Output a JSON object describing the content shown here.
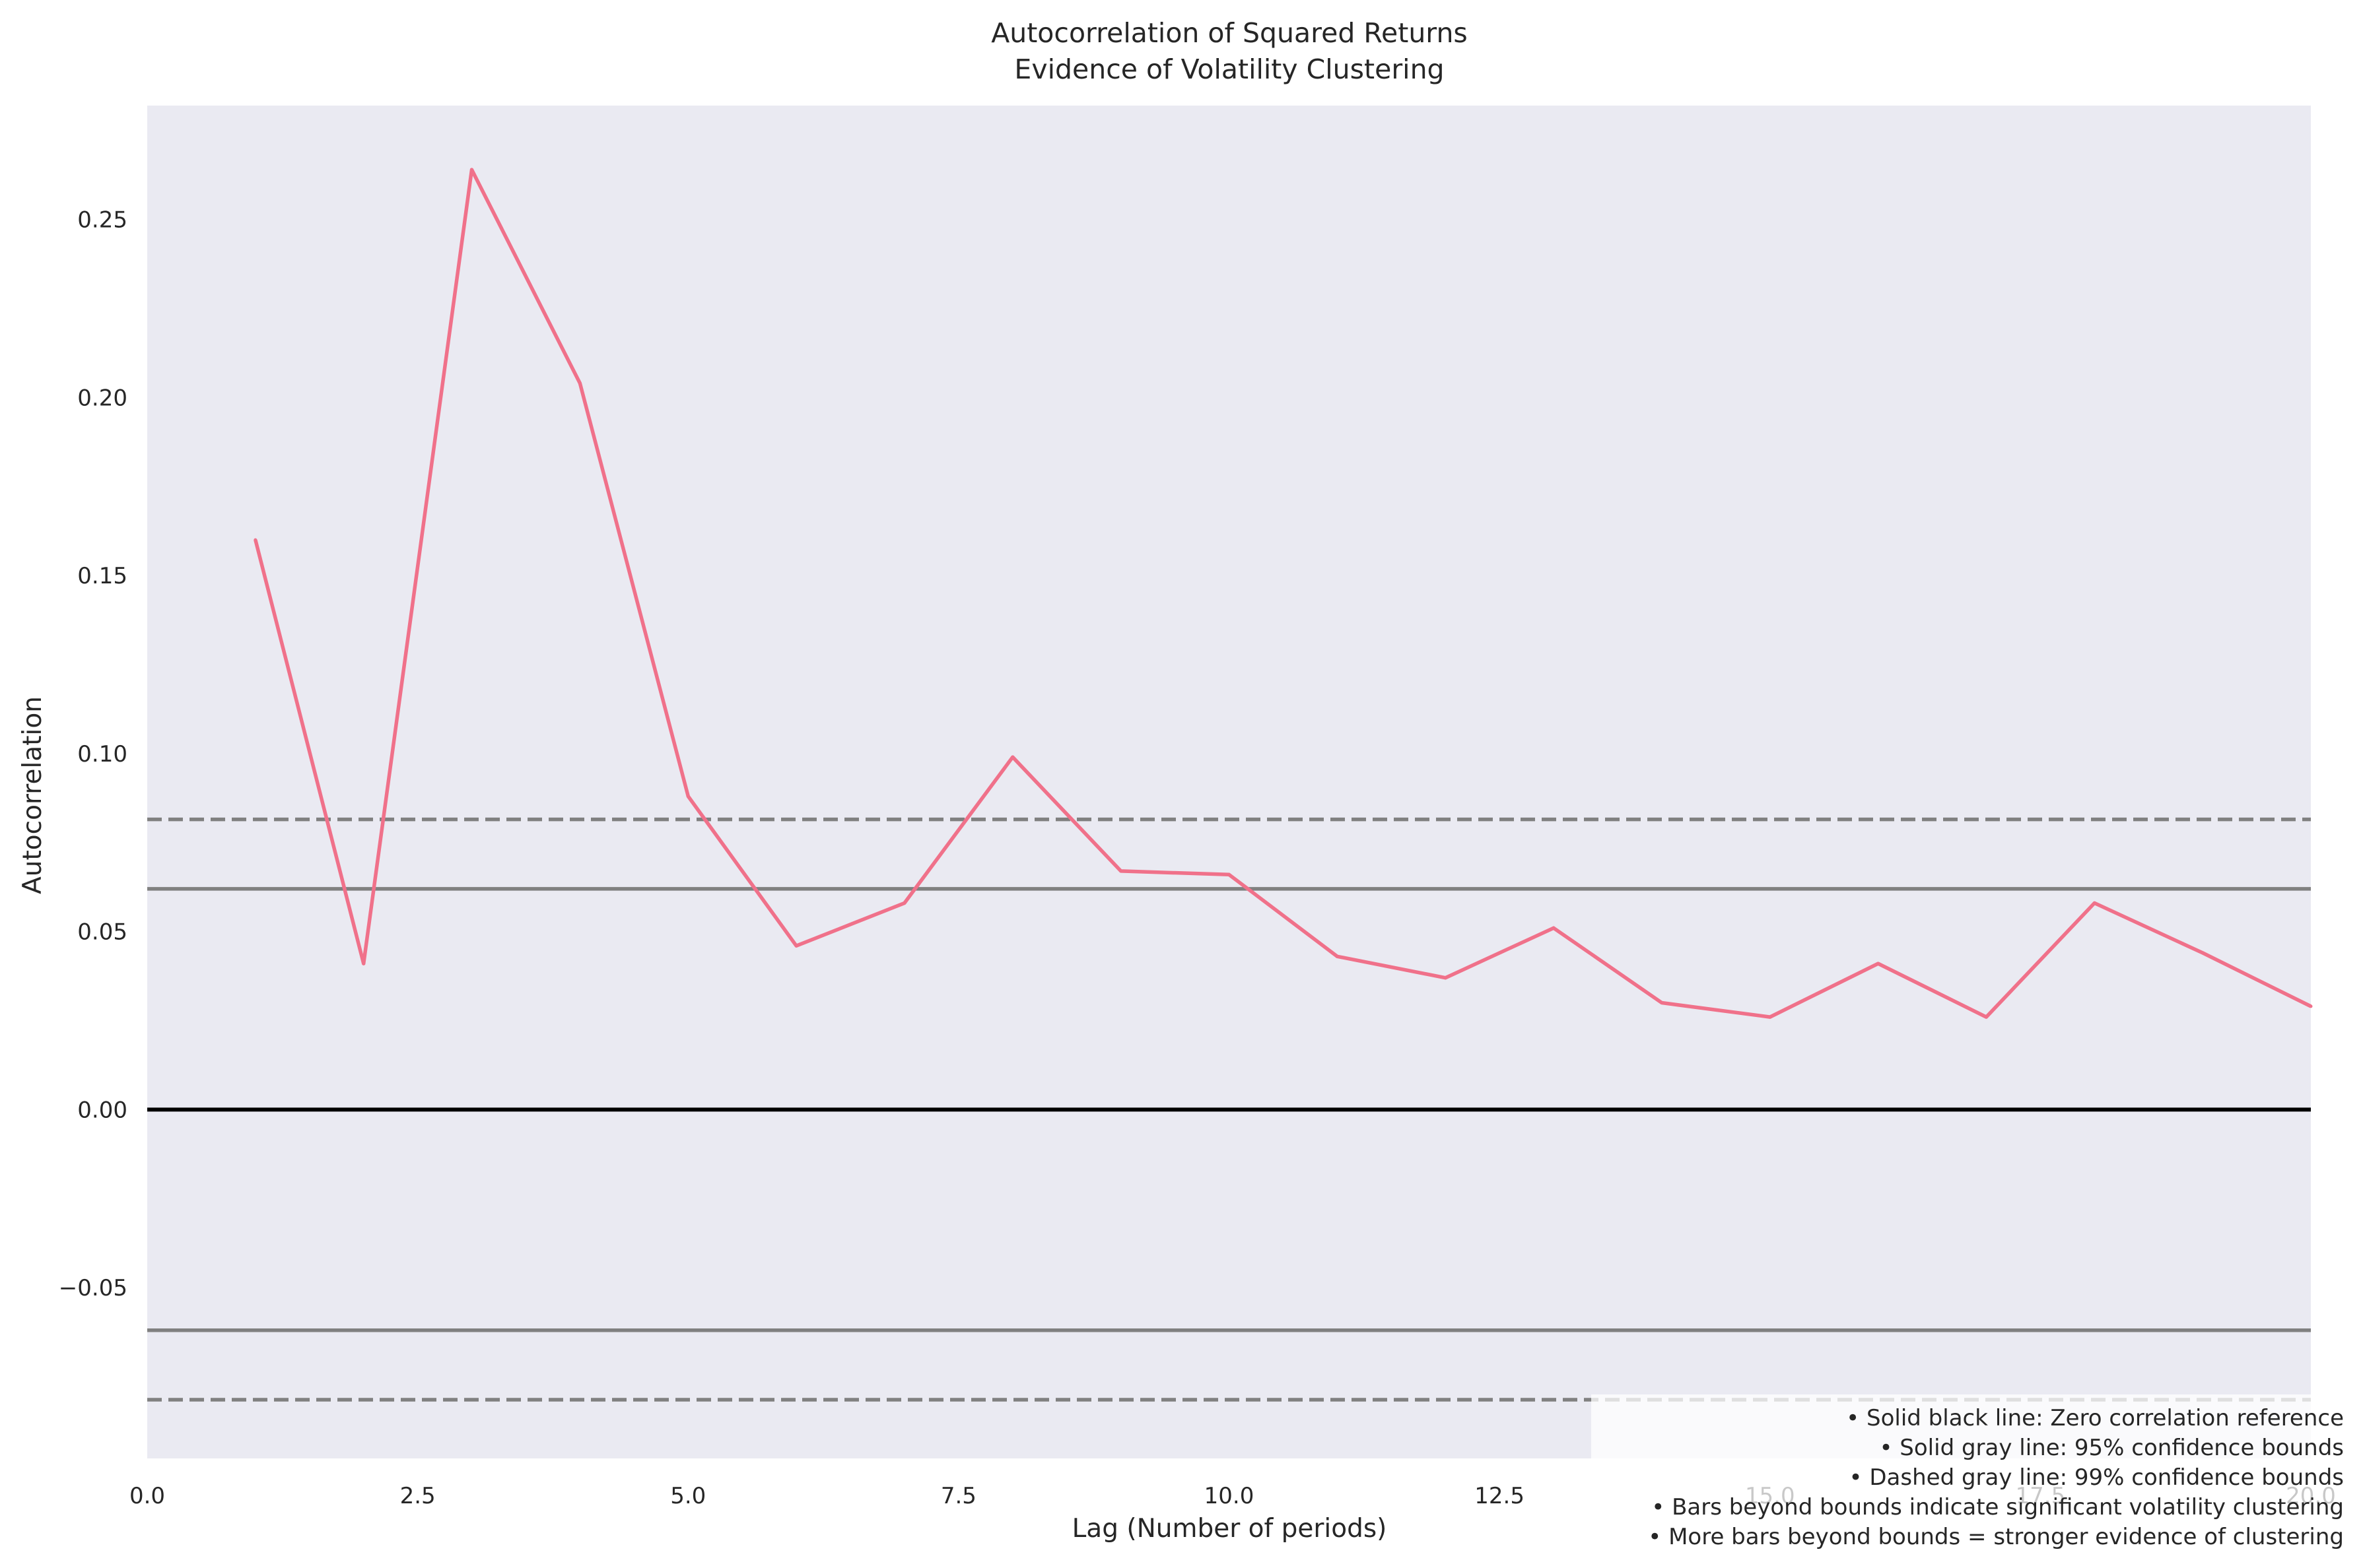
{
  "chart_data": {
    "type": "line",
    "title": "Autocorrelation of Squared Returns",
    "subtitle": "Evidence of Volatility Clustering",
    "xlabel": "Lag (Number of periods)",
    "ylabel": "Autocorrelation",
    "xlim": [
      0,
      20
    ],
    "ylim": [
      -0.098,
      0.282
    ],
    "x_ticks": [
      0.0,
      2.5,
      5.0,
      7.5,
      10.0,
      12.5,
      15.0,
      17.5,
      20.0
    ],
    "x_tick_labels": [
      "0.0",
      "2.5",
      "5.0",
      "7.5",
      "10.0",
      "12.5",
      "15.0",
      "17.5",
      "20.0"
    ],
    "y_ticks": [
      -0.05,
      0.0,
      0.05,
      0.1,
      0.15,
      0.2,
      0.25
    ],
    "y_tick_labels": [
      "−0.05",
      "0.00",
      "0.05",
      "0.10",
      "0.15",
      "0.20",
      "0.25"
    ],
    "grid": false,
    "background_color": "#eaeaf2",
    "series": [
      {
        "color": "#f0718a",
        "x": [
          1,
          2,
          3,
          4,
          5,
          6,
          7,
          8,
          9,
          10,
          11,
          12,
          13,
          14,
          15,
          16,
          17,
          18,
          19,
          20
        ],
        "values": [
          0.16,
          0.041,
          0.264,
          0.204,
          0.088,
          0.046,
          0.058,
          0.099,
          0.067,
          0.066,
          0.043,
          0.037,
          0.051,
          0.03,
          0.026,
          0.041,
          0.026,
          0.058,
          0.044,
          0.029
        ]
      }
    ],
    "reference_lines": [
      {
        "y": 0.0,
        "color": "#000000",
        "style": "solid"
      },
      {
        "y": 0.062,
        "color": "#808080",
        "style": "solid"
      },
      {
        "y": -0.062,
        "color": "#808080",
        "style": "solid"
      },
      {
        "y": 0.0815,
        "color": "#808080",
        "style": "dashed"
      },
      {
        "y": -0.0815,
        "color": "#808080",
        "style": "dashed"
      }
    ],
    "annotation": {
      "placement": "bottom-right",
      "lines": [
        "• Solid black line: Zero correlation reference",
        "• Solid gray line: 95% confidence bounds",
        "• Dashed gray line: 99% confidence bounds",
        "• Bars beyond bounds indicate significant volatility clustering",
        "• More bars beyond bounds = stronger evidence of clustering"
      ]
    }
  }
}
